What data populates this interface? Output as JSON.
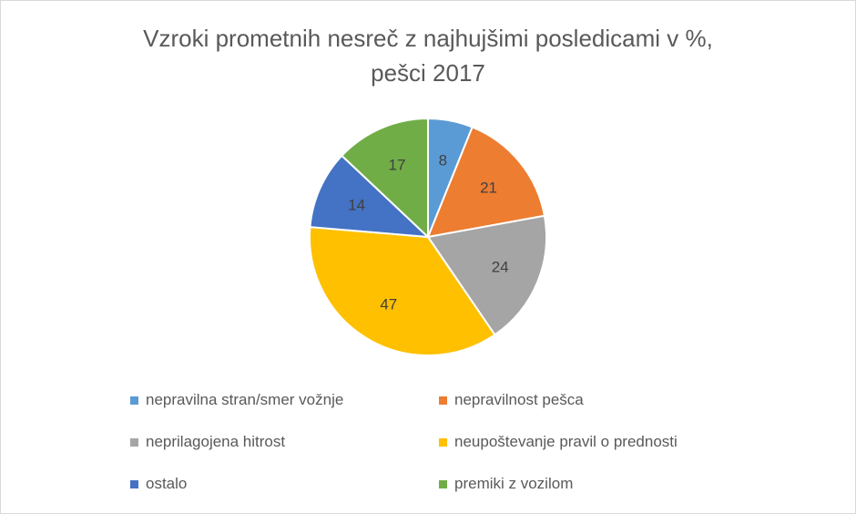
{
  "chart_data": {
    "type": "pie",
    "title_lines": [
      "Vzroki prometnih nesreč z najhujšimi posledicami v %,",
      "pešci 2017"
    ],
    "slices": [
      {
        "label": "nepravilna stran/smer vožnje",
        "value": 8,
        "color": "#5b9bd5"
      },
      {
        "label": "nepravilnost pešca",
        "value": 21,
        "color": "#ed7d31"
      },
      {
        "label": "neprilagojena hitrost",
        "value": 24,
        "color": "#a5a5a5"
      },
      {
        "label": "neupoštevanje pravil o prednosti",
        "value": 47,
        "color": "#ffc000"
      },
      {
        "label": "ostalo",
        "value": 14,
        "color": "#4472c4"
      },
      {
        "label": "premiki z vozilom",
        "value": 17,
        "color": "#70ad47"
      }
    ],
    "legend_position": "bottom",
    "data_labels": "inside"
  }
}
